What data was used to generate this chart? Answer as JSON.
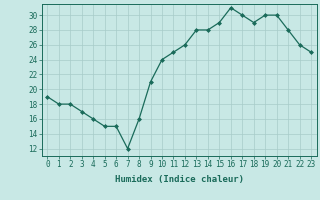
{
  "x": [
    0,
    1,
    2,
    3,
    4,
    5,
    6,
    7,
    8,
    9,
    10,
    11,
    12,
    13,
    14,
    15,
    16,
    17,
    18,
    19,
    20,
    21,
    22,
    23
  ],
  "y": [
    19,
    18,
    18,
    17,
    16,
    15,
    15,
    12,
    16,
    21,
    24,
    25,
    26,
    28,
    28,
    29,
    31,
    30,
    29,
    30,
    30,
    28,
    26,
    25
  ],
  "line_color": "#1a6b5a",
  "marker": "D",
  "marker_size": 2,
  "bg_color": "#c8e8e5",
  "grid_color": "#a8ccc9",
  "xlabel": "Humidex (Indice chaleur)",
  "xlim": [
    -0.5,
    23.5
  ],
  "ylim": [
    11,
    31.5
  ],
  "yticks": [
    12,
    14,
    16,
    18,
    20,
    22,
    24,
    26,
    28,
    30
  ],
  "xticks": [
    0,
    1,
    2,
    3,
    4,
    5,
    6,
    7,
    8,
    9,
    10,
    11,
    12,
    13,
    14,
    15,
    16,
    17,
    18,
    19,
    20,
    21,
    22,
    23
  ],
  "xtick_labels": [
    "0",
    "1",
    "2",
    "3",
    "4",
    "5",
    "6",
    "7",
    "8",
    "9",
    "10",
    "11",
    "12",
    "13",
    "14",
    "15",
    "16",
    "17",
    "18",
    "19",
    "20",
    "21",
    "22",
    "23"
  ],
  "tick_color": "#1a6b5a",
  "label_fontsize": 6.5,
  "tick_fontsize": 5.5
}
